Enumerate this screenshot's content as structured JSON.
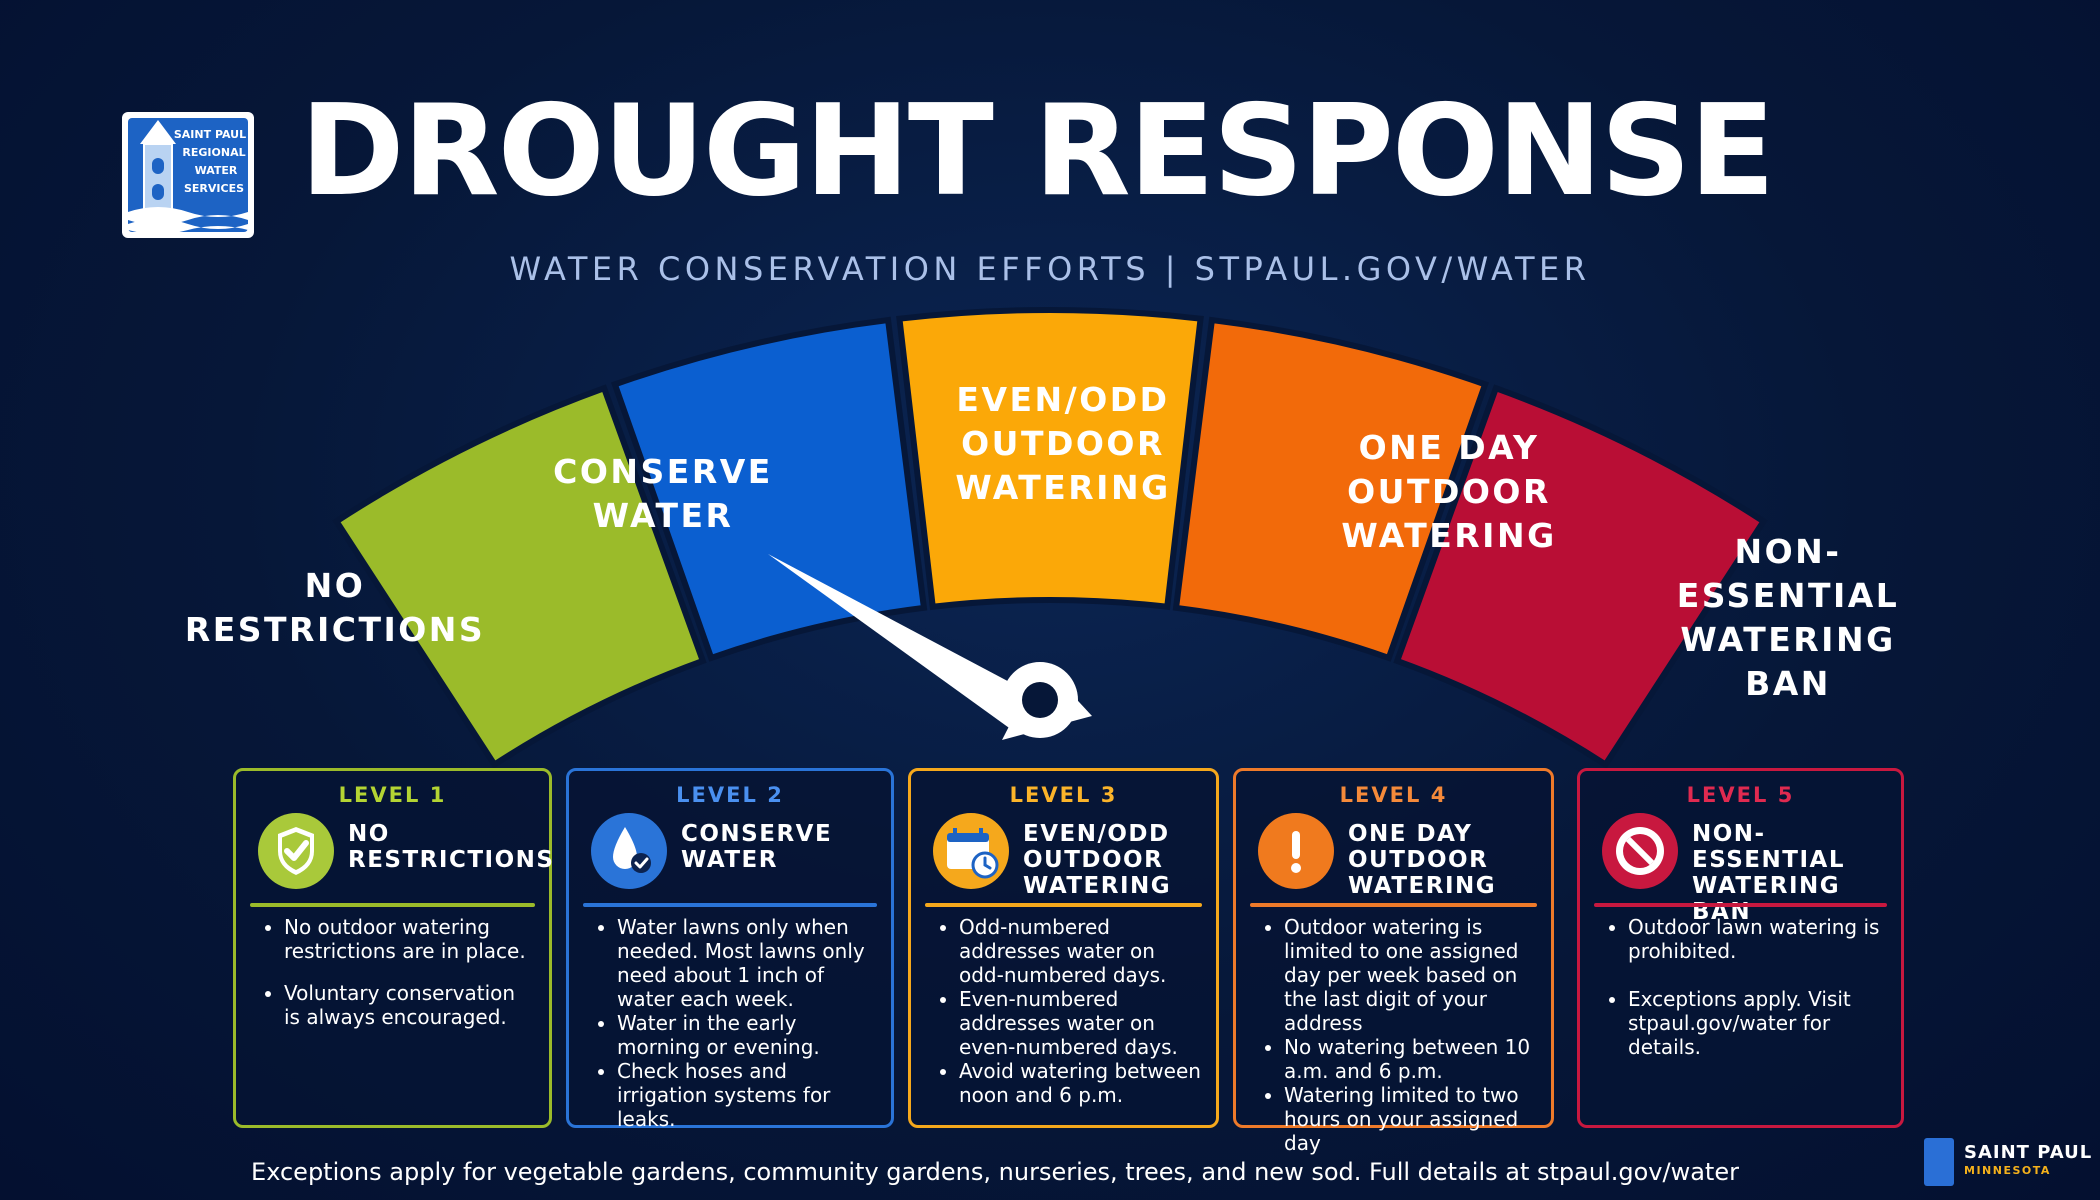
{
  "header": {
    "logo_lines": [
      "SAINT PAUL",
      "REGIONAL",
      "WATER",
      "SERVICES"
    ],
    "title": "DROUGHT RESPONSE",
    "subtitle": "WATER CONSERVATION EFFORTS | STPAUL.GOV/WATER"
  },
  "gauge": {
    "current_level": 2,
    "segments": [
      {
        "label": "NO\nRESTRICTIONS",
        "color": "#9bbb2a"
      },
      {
        "label": "CONSERVE\nWATER",
        "color": "#0b5fd0"
      },
      {
        "label": "EVEN/ODD\nOUTDOOR\nWATERING",
        "color": "#fba808"
      },
      {
        "label": "ONE DAY\nOUTDOOR\nWATERING",
        "color": "#f26a0a"
      },
      {
        "label": "NON-ESSENTIAL\nWATERING\nBAN",
        "color": "#b90e35"
      }
    ]
  },
  "cards": [
    {
      "level": "LEVEL 1",
      "title": "NO RESTRICTIONS",
      "color": "#9bbb2a",
      "level_color": "#b4d433",
      "icon": "shield-check-icon",
      "bullets": [
        "No outdoor watering restrictions are in place.",
        "Voluntary conservation is always encouraged."
      ]
    },
    {
      "level": "LEVEL 2",
      "title": "CONSERVE WATER",
      "color": "#2a74d8",
      "level_color": "#4a90f0",
      "icon": "water-drop-icon",
      "bullets": [
        "Water lawns only when needed. Most lawns only need about 1 inch of water each week.",
        "Water in the early morning or evening.",
        "Check hoses and irrigation systems for leaks."
      ]
    },
    {
      "level": "LEVEL 3",
      "title": "EVEN/ODD OUTDOOR WATERING",
      "color": "#f5a81c",
      "level_color": "#fbb42a",
      "icon": "calendar-clock-icon",
      "bullets": [
        "Odd-numbered addresses water on odd-numbered days.",
        "Even-numbered addresses water on even-numbered days.",
        "Avoid watering between noon and 6 p.m."
      ]
    },
    {
      "level": "LEVEL 4",
      "title": "ONE DAY OUTDOOR WATERING",
      "color": "#ee7a2a",
      "level_color": "#f58a3a",
      "icon": "exclamation-icon",
      "bullets": [
        "Outdoor watering is limited to one assigned day per week based on the last digit of your address",
        "No watering between 10 a.m. and 6 p.m.",
        "Watering limited to two hours on your assigned day"
      ]
    },
    {
      "level": "LEVEL 5",
      "title": "NON-ESSENTIAL WATERING BAN",
      "color": "#c8183f",
      "level_color": "#e02a50",
      "icon": "prohibited-icon",
      "bullets": [
        "Outdoor lawn watering is prohibited.",
        "Exceptions apply. Visit stpaul.gov/water for details."
      ]
    }
  ],
  "footer": {
    "text": "Exceptions apply for vegetable gardens, community gardens, nurseries, trees, and new sod. Full details at stpaul.gov/water",
    "city": "SAINT PAUL",
    "state": "MINNESOTA"
  }
}
